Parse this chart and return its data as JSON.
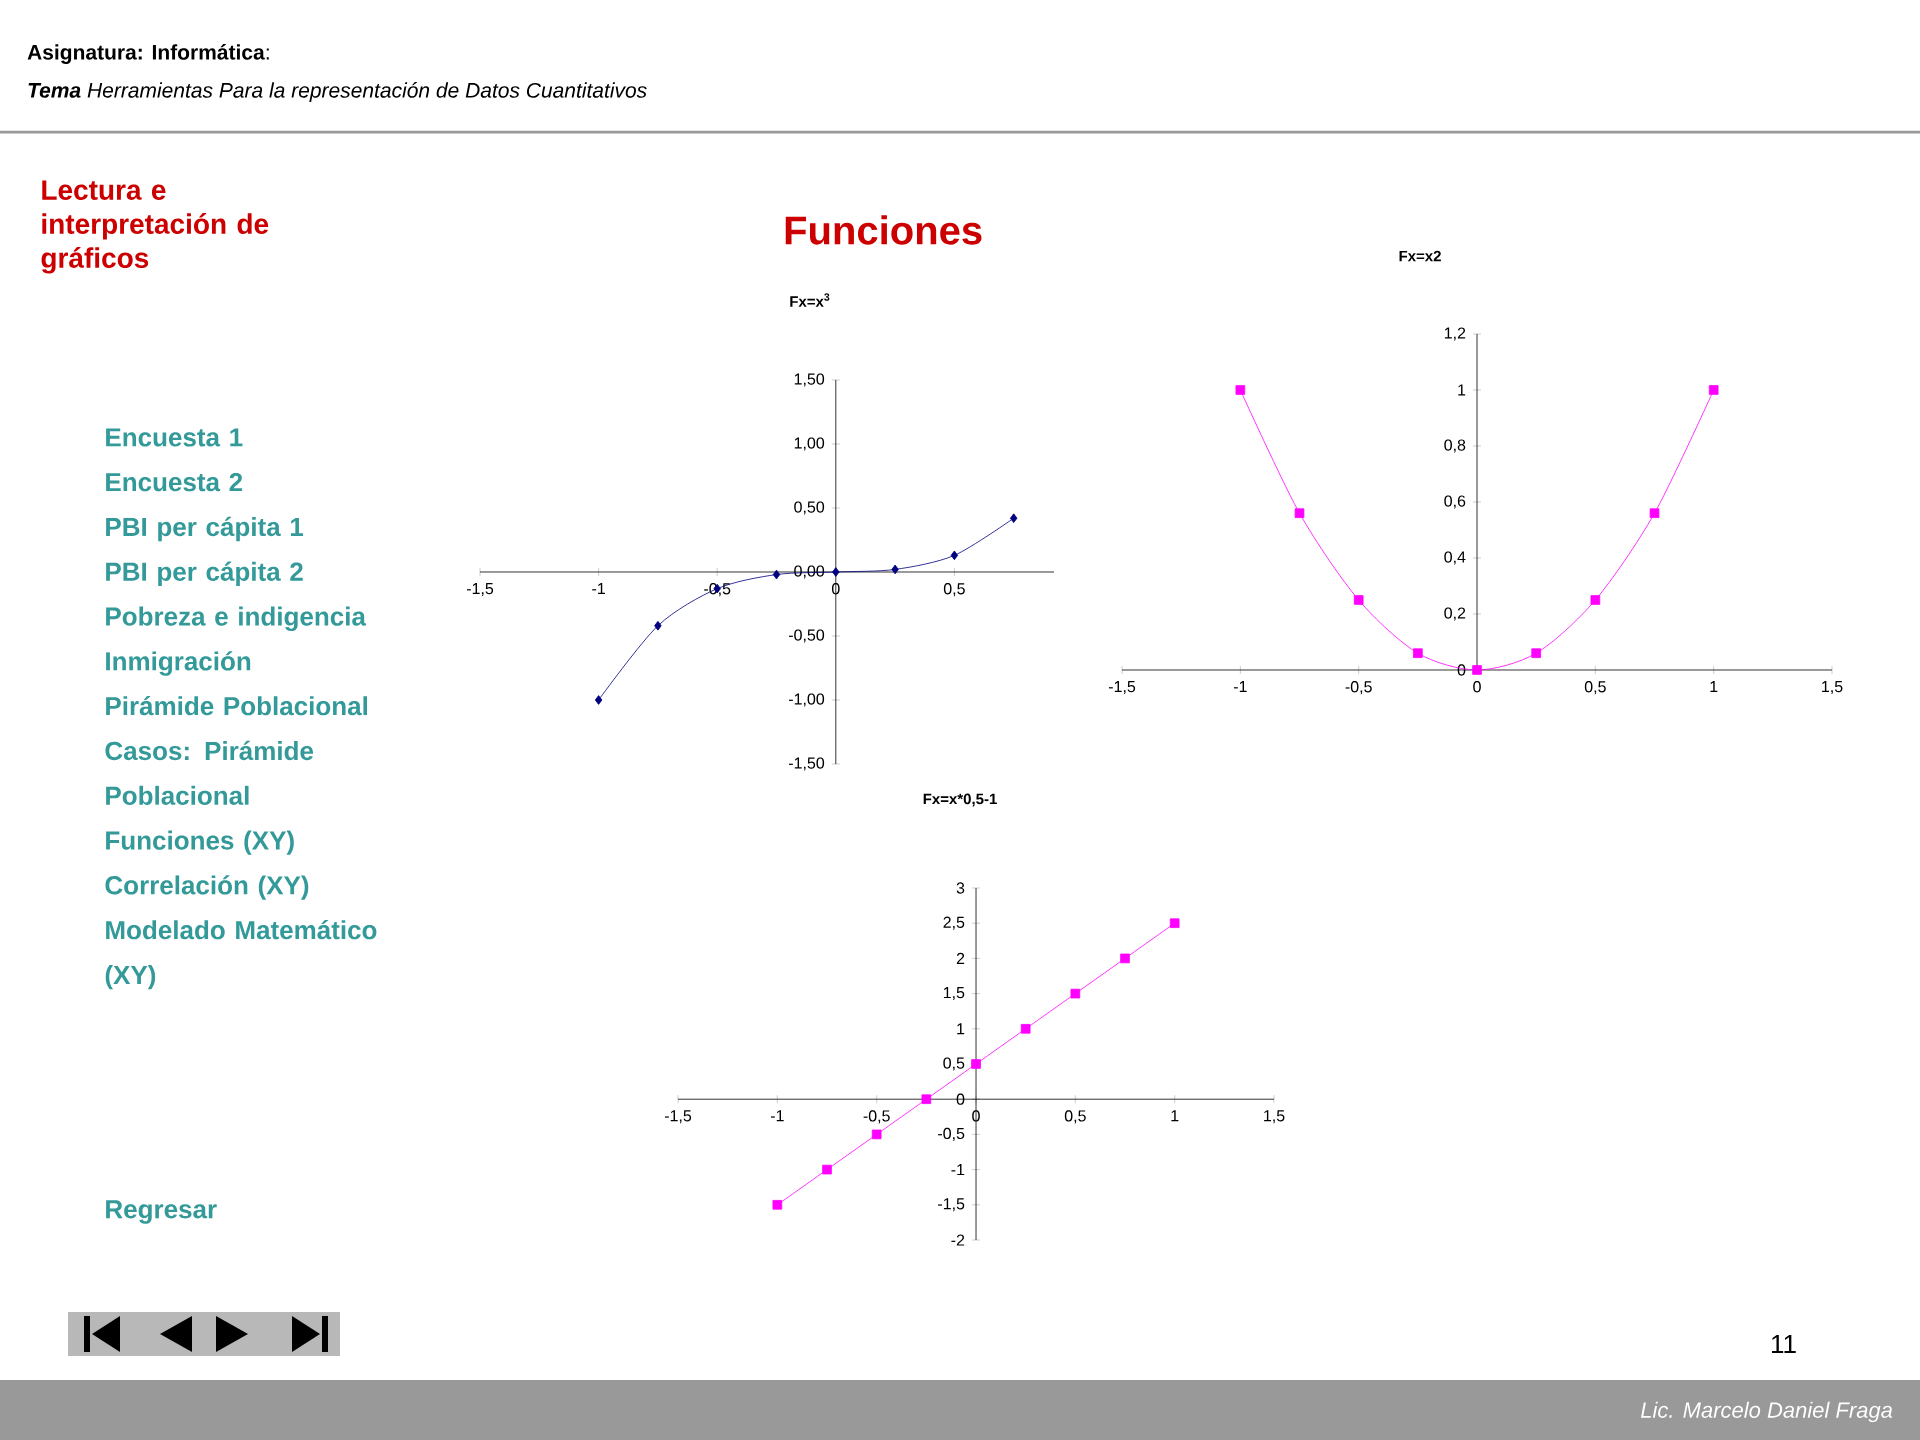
{
  "chart_data": [
    {
      "type": "other",
      "title": "Funciones",
      "annotations": [
        "**Asignatura: Informática**:",
        "**Tema** Herramientas Para la representación de Datos Cuantitativos",
        "Lectura e interpretación de gráficos",
        "Encuesta 1",
        "Encuesta 2",
        "PBI per cápita 1",
        "PBI per cápita 2",
        "Pobreza e indigencia",
        "Inmigración",
        "Pirámide Poblacional",
        "Casos: Pirámide Poblacional",
        "Funciones (XY)",
        "Correlación (XY)",
        "Modelado Matemático (XY)",
        "Regresar",
        "11",
        "Lic. Marcelo Daniel Fraga"
      ]
    },
    {
      "type": "line",
      "title": "Fx=x$^{3}$",
      "x": [
        -1,
        -0.75,
        -0.5,
        -0.25,
        0,
        0.25,
        0.5,
        0.75
      ],
      "marker": "diamond",
      "series": [
        {
          "color": "#000080",
          "values": [
            -1,
            -0.42,
            -0.13,
            -0.02,
            0,
            0.02,
            0.13,
            0.42
          ]
        }
      ],
      "xlim": [
        -1.5,
        0.92
      ],
      "xticks": [
        {
          "value": -1.5,
          "label": "-1,5"
        },
        {
          "value": -1,
          "label": "-1"
        },
        {
          "value": -0.5,
          "label": "-0,5"
        },
        {
          "value": 0,
          "label": "0"
        },
        {
          "value": 0.5,
          "label": "0,5"
        }
      ],
      "ylim": [
        -1.5,
        1.5
      ],
      "yticks": [
        {
          "value": -1.5,
          "label": "-1,50"
        },
        {
          "value": -1,
          "label": "-1,00"
        },
        {
          "value": -0.5,
          "label": "-0,50"
        },
        {
          "value": 0,
          "label": "0,00"
        },
        {
          "value": 0.5,
          "label": "0,50"
        },
        {
          "value": 1,
          "label": "1,00"
        },
        {
          "value": 1.5,
          "label": "1,50"
        }
      ]
    },
    {
      "type": "line",
      "title": "Fx=x2",
      "x": [
        -1,
        -0.75,
        -0.5,
        -0.25,
        0,
        0.25,
        0.5,
        0.75,
        1
      ],
      "marker": "square",
      "series": [
        {
          "color": "#ff00ff",
          "values": [
            1,
            0.56,
            0.25,
            0.06,
            0,
            0.06,
            0.25,
            0.56,
            1
          ]
        }
      ],
      "xlim": [
        -1.5,
        1.5
      ],
      "xticks": [
        {
          "value": -1.5,
          "label": "-1,5"
        },
        {
          "value": -1,
          "label": "-1"
        },
        {
          "value": -0.5,
          "label": "-0,5"
        },
        {
          "value": 0,
          "label": "0"
        },
        {
          "value": 0.5,
          "label": "0,5"
        },
        {
          "value": 1,
          "label": "1"
        },
        {
          "value": 1.5,
          "label": "1,5"
        }
      ],
      "ylim": [
        0,
        1.2
      ],
      "yticks": [
        {
          "value": 0,
          "label": "0"
        },
        {
          "value": 0.2,
          "label": "0,2"
        },
        {
          "value": 0.4,
          "label": "0,4"
        },
        {
          "value": 0.6,
          "label": "0,6"
        },
        {
          "value": 0.8,
          "label": "0,8"
        },
        {
          "value": 1,
          "label": "1"
        },
        {
          "value": 1.2,
          "label": "1,2"
        }
      ]
    },
    {
      "type": "line",
      "title": "Fx=x*0,5-1",
      "x": [
        -1,
        -0.75,
        -0.5,
        -0.25,
        0,
        0.25,
        0.5,
        0.75,
        1
      ],
      "marker": "square",
      "series": [
        {
          "color": "#ff00ff",
          "values": [
            -1.5,
            -1,
            -0.5,
            0,
            0.5,
            1,
            1.5,
            2,
            2.5
          ]
        }
      ],
      "xlim": [
        -1.5,
        1.5
      ],
      "xticks": [
        {
          "value": -1.5,
          "label": "-1,5"
        },
        {
          "value": -1,
          "label": "-1"
        },
        {
          "value": -0.5,
          "label": "-0,5"
        },
        {
          "value": 0,
          "label": "0"
        },
        {
          "value": 0.5,
          "label": "0,5"
        },
        {
          "value": 1,
          "label": "1"
        },
        {
          "value": 1.5,
          "label": "1,5"
        }
      ],
      "ylim": [
        -2,
        3
      ],
      "yticks": [
        {
          "value": -2,
          "label": "-2"
        },
        {
          "value": -1.5,
          "label": "-1,5"
        },
        {
          "value": -1,
          "label": "-1"
        },
        {
          "value": -0.5,
          "label": "-0,5"
        },
        {
          "value": 0,
          "label": "0"
        },
        {
          "value": 0.5,
          "label": "0,5"
        },
        {
          "value": 1,
          "label": "1"
        },
        {
          "value": 1.5,
          "label": "1,5"
        },
        {
          "value": 2,
          "label": "2"
        },
        {
          "value": 2.5,
          "label": "2,5"
        },
        {
          "value": 3,
          "label": "3"
        }
      ]
    }
  ]
}
